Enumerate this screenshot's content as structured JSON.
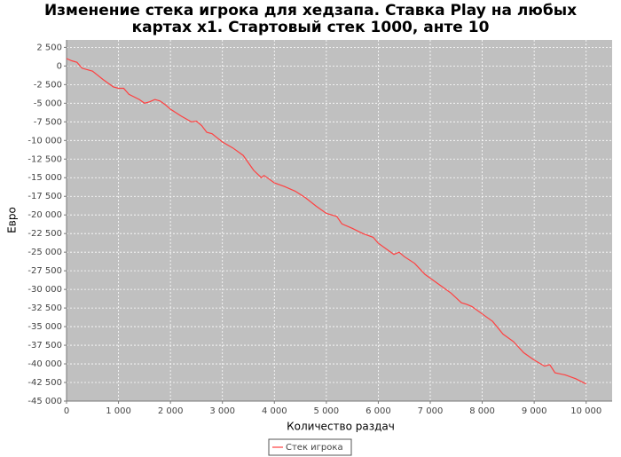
{
  "chart_data": {
    "type": "line",
    "title": [
      "Изменение стека игрока для хедзапа. Ставка Play на любых",
      "картах x1. Стартовый стек 1000, анте 10"
    ],
    "x_label": "Количество раздач",
    "y_label": "Евро",
    "x": [
      0,
      100,
      200,
      300,
      500,
      700,
      900,
      1000,
      1100,
      1200,
      1400,
      1500,
      1600,
      1700,
      1800,
      1900,
      2000,
      2200,
      2400,
      2500,
      2600,
      2700,
      2800,
      3000,
      3200,
      3400,
      3600,
      3750,
      3800,
      4000,
      4200,
      4400,
      4600,
      4800,
      5000,
      5200,
      5300,
      5500,
      5700,
      5900,
      6000,
      6200,
      6300,
      6400,
      6500,
      6700,
      6900,
      7000,
      7200,
      7400,
      7600,
      7700,
      7800,
      8000,
      8200,
      8400,
      8600,
      8800,
      9000,
      9200,
      9300,
      9400,
      9600,
      9800,
      10000
    ],
    "series": [
      {
        "name": "Стек игрока",
        "color": "#ff4040",
        "values": [
          1000,
          700,
          500,
          -300,
          -700,
          -1800,
          -2800,
          -3000,
          -3000,
          -3800,
          -4500,
          -5000,
          -4800,
          -4500,
          -4700,
          -5200,
          -5800,
          -6700,
          -7500,
          -7400,
          -8000,
          -8900,
          -9100,
          -10200,
          -11000,
          -12000,
          -14000,
          -15000,
          -14700,
          -15700,
          -16200,
          -16800,
          -17700,
          -18800,
          -19800,
          -20200,
          -21200,
          -21800,
          -22500,
          -23000,
          -23800,
          -24800,
          -25300,
          -25000,
          -25600,
          -26500,
          -28000,
          -28500,
          -29500,
          -30500,
          -31800,
          -32000,
          -32300,
          -33300,
          -34300,
          -36000,
          -37000,
          -38500,
          -39500,
          -40300,
          -40100,
          -41200,
          -41500,
          -42000,
          -42700
        ]
      }
    ],
    "xlim": [
      0,
      10500
    ],
    "ylim": [
      -45000,
      3500
    ],
    "xticks": [
      0,
      {
        "value": 1000,
        "label": "1 000"
      },
      {
        "value": 2000,
        "label": "2 000"
      },
      {
        "value": 3000,
        "label": "3 000"
      },
      {
        "value": 4000,
        "label": "4 000"
      },
      {
        "value": 5000,
        "label": "5 000"
      },
      {
        "value": 6000,
        "label": "6 000"
      },
      {
        "value": 7000,
        "label": "7 000"
      },
      {
        "value": 8000,
        "label": "8 000"
      },
      {
        "value": 9000,
        "label": "9 000"
      },
      {
        "value": 10000,
        "label": "10 000"
      }
    ],
    "yticks": [
      {
        "value": 2500,
        "label": "2 500"
      },
      0,
      {
        "value": -2500,
        "label": "-2 500"
      },
      {
        "value": -5000,
        "label": "-5 000"
      },
      {
        "value": -7500,
        "label": "-7 500"
      },
      {
        "value": -10000,
        "label": "-10 000"
      },
      {
        "value": -12500,
        "label": "-12 500"
      },
      {
        "value": -15000,
        "label": "-15 000"
      },
      {
        "value": -17500,
        "label": "-17 500"
      },
      {
        "value": -20000,
        "label": "-20 000"
      },
      {
        "value": -22500,
        "label": "-22 500"
      },
      {
        "value": -25000,
        "label": "-25 000"
      },
      {
        "value": -27500,
        "label": "-27 500"
      },
      {
        "value": -30000,
        "label": "-30 000"
      },
      {
        "value": -32500,
        "label": "-32 500"
      },
      {
        "value": -35000,
        "label": "-35 000"
      },
      {
        "value": -37500,
        "label": "-37 500"
      },
      {
        "value": -40000,
        "label": "-40 000"
      },
      {
        "value": -42500,
        "label": "-42 500"
      },
      {
        "value": -45000,
        "label": "-45 000"
      }
    ],
    "grid": true
  }
}
